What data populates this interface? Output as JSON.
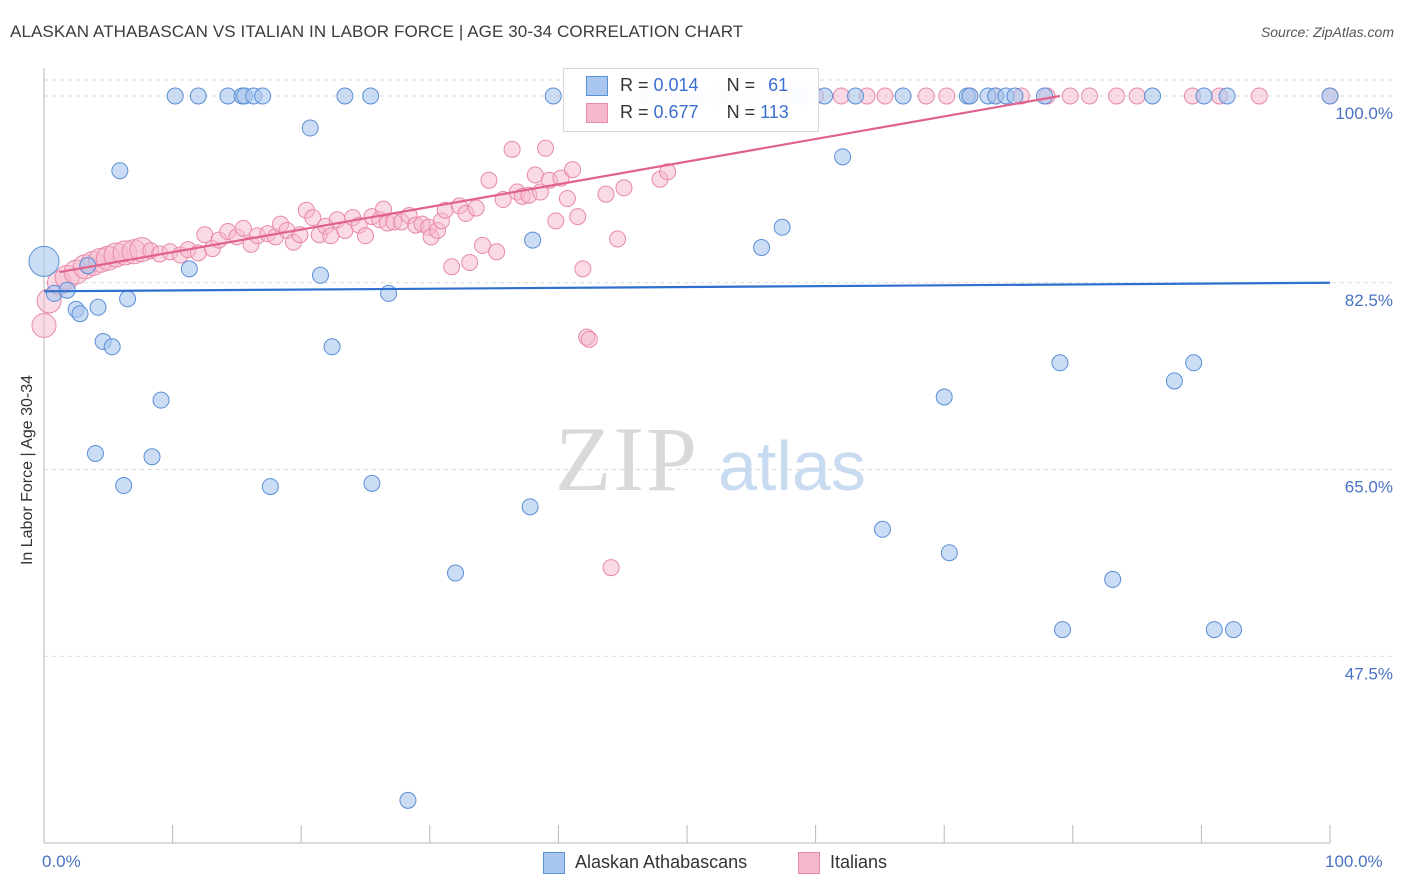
{
  "header": {
    "title": "ALASKAN ATHABASCAN VS ITALIAN IN LABOR FORCE | AGE 30-34 CORRELATION CHART",
    "source": "Source: ZipAtlas.com"
  },
  "watermark": {
    "zip": "ZIP",
    "atlas": "atlas"
  },
  "legend": {
    "rows": [
      {
        "r_label": "R = ",
        "r_value": "0.014",
        "n_label": "N = ",
        "n_value": "61"
      },
      {
        "r_label": "R = ",
        "r_value": "0.677",
        "n_label": "N = ",
        "n_value": "113"
      }
    ]
  },
  "bottom_legend": [
    "Alaskan Athabascans",
    "Italians"
  ],
  "colors": {
    "blue_fill": "#a9c7ee",
    "blue_stroke": "#5b8fd6",
    "blue_line": "#2f6fce",
    "pink_fill": "#f6b8cc",
    "pink_stroke": "#e889a8",
    "pink_line": "#e0628c",
    "grid": "#d9d9d9",
    "tick_text": "#4a72c4"
  },
  "chart_data": {
    "type": "scatter",
    "title": "ALASKAN ATHABASCAN VS ITALIAN IN LABOR FORCE | AGE 30-34 CORRELATION CHART",
    "xlabel": "",
    "ylabel": "In Labor Force | Age 30-34",
    "xlim": [
      0,
      100
    ],
    "ylim": [
      30,
      101.5
    ],
    "x_tick_labels": [
      "0.0%",
      "100.0%"
    ],
    "y_ticks": [
      47.5,
      65.0,
      82.5,
      100.0
    ],
    "y_tick_labels": [
      "47.5%",
      "65.0%",
      "82.5%",
      "100.0%"
    ],
    "grid": true,
    "legend_position": "top-center",
    "series": [
      {
        "name": "Alaskan Athabascans",
        "color": "#a9c7ee",
        "trend": {
          "x": [
            0,
            100
          ],
          "y": [
            81.7,
            82.5
          ]
        },
        "points": [
          [
            0.0,
            84.5,
            3
          ],
          [
            0.8,
            81.5,
            1
          ],
          [
            1.8,
            81.8,
            1
          ],
          [
            2.5,
            80.0,
            1
          ],
          [
            2.8,
            79.6,
            1
          ],
          [
            3.4,
            84.1,
            1
          ],
          [
            4.2,
            80.2,
            1
          ],
          [
            4.6,
            77.0,
            1
          ],
          [
            5.3,
            76.5,
            1
          ],
          [
            5.9,
            93.0,
            1
          ],
          [
            6.5,
            81.0,
            1
          ],
          [
            9.1,
            71.5,
            1
          ],
          [
            4.0,
            66.5,
            1
          ],
          [
            6.2,
            63.5,
            1
          ],
          [
            8.4,
            66.2,
            1
          ],
          [
            11.3,
            83.8,
            1
          ],
          [
            10.2,
            100.0,
            1
          ],
          [
            12.0,
            100.0,
            1
          ],
          [
            14.3,
            100.0,
            1
          ],
          [
            15.4,
            100.0,
            1
          ],
          [
            15.6,
            100.0,
            1
          ],
          [
            16.3,
            100.0,
            1
          ],
          [
            17.0,
            100.0,
            1
          ],
          [
            17.6,
            63.4,
            1
          ],
          [
            20.7,
            97.0,
            1
          ],
          [
            21.5,
            83.2,
            1
          ],
          [
            22.4,
            76.5,
            1
          ],
          [
            23.4,
            100.0,
            1
          ],
          [
            25.4,
            100.0,
            1
          ],
          [
            25.5,
            63.7,
            1
          ],
          [
            26.8,
            81.5,
            1
          ],
          [
            28.3,
            34.0,
            1
          ],
          [
            32.0,
            55.3,
            1
          ],
          [
            37.8,
            61.5,
            1
          ],
          [
            38.0,
            86.5,
            1
          ],
          [
            39.6,
            100.0,
            1
          ],
          [
            47.0,
            100.0,
            1
          ],
          [
            49.7,
            100.0,
            1
          ],
          [
            50.6,
            100.0,
            1
          ],
          [
            52.4,
            100.0,
            1
          ],
          [
            55.8,
            85.8,
            1
          ],
          [
            57.4,
            87.7,
            1
          ],
          [
            58.1,
            100.0,
            1
          ],
          [
            58.8,
            100.0,
            1
          ],
          [
            58.9,
            100.0,
            1
          ],
          [
            60.7,
            100.0,
            1
          ],
          [
            62.1,
            94.3,
            1
          ],
          [
            63.1,
            100.0,
            1
          ],
          [
            65.2,
            59.4,
            1
          ],
          [
            66.8,
            100.0,
            1
          ],
          [
            70.0,
            71.8,
            1
          ],
          [
            70.4,
            57.2,
            1
          ],
          [
            71.8,
            100.0,
            1
          ],
          [
            72.0,
            100.0,
            1
          ],
          [
            73.4,
            100.0,
            1
          ],
          [
            74.0,
            100.0,
            1
          ],
          [
            74.8,
            100.0,
            1
          ],
          [
            75.5,
            100.0,
            1
          ],
          [
            77.8,
            100.0,
            1
          ],
          [
            79.0,
            75.0,
            1
          ],
          [
            79.2,
            50.0,
            1
          ],
          [
            83.1,
            54.7,
            1
          ],
          [
            86.2,
            100.0,
            1
          ],
          [
            87.9,
            73.3,
            1
          ],
          [
            89.4,
            75.0,
            1
          ],
          [
            90.2,
            100.0,
            1
          ],
          [
            91.0,
            50.0,
            1
          ],
          [
            92.0,
            100.0,
            1
          ],
          [
            92.5,
            50.0,
            1
          ],
          [
            100.0,
            100.0,
            1
          ]
        ]
      },
      {
        "name": "Italians",
        "color": "#f6b8cc",
        "trend": {
          "x": [
            1.2,
            79.0
          ],
          "y": [
            83.5,
            100.0
          ]
        },
        "points": [
          [
            0.0,
            78.5,
            2
          ],
          [
            0.4,
            80.8,
            2
          ],
          [
            1.2,
            82.5,
            2
          ],
          [
            1.8,
            83.0,
            2
          ],
          [
            2.5,
            83.5,
            2
          ],
          [
            3.2,
            84.0,
            2
          ],
          [
            3.8,
            84.3,
            2
          ],
          [
            4.4,
            84.6,
            2
          ],
          [
            5.0,
            84.8,
            2
          ],
          [
            5.6,
            85.1,
            2
          ],
          [
            6.3,
            85.3,
            2
          ],
          [
            7.0,
            85.4,
            2
          ],
          [
            7.6,
            85.6,
            2
          ],
          [
            8.3,
            85.5,
            1
          ],
          [
            9.0,
            85.2,
            1
          ],
          [
            9.8,
            85.4,
            1
          ],
          [
            10.6,
            85.1,
            1
          ],
          [
            11.2,
            85.6,
            1
          ],
          [
            12.0,
            85.3,
            1
          ],
          [
            12.5,
            87.0,
            1
          ],
          [
            13.1,
            85.7,
            1
          ],
          [
            13.6,
            86.5,
            1
          ],
          [
            14.3,
            87.3,
            1
          ],
          [
            15.0,
            86.8,
            1
          ],
          [
            15.5,
            87.6,
            1
          ],
          [
            16.1,
            86.1,
            1
          ],
          [
            16.6,
            86.9,
            1
          ],
          [
            17.4,
            87.1,
            1
          ],
          [
            18.0,
            86.8,
            1
          ],
          [
            18.4,
            88.0,
            1
          ],
          [
            18.9,
            87.4,
            1
          ],
          [
            19.4,
            86.3,
            1
          ],
          [
            19.9,
            87.0,
            1
          ],
          [
            20.4,
            89.3,
            1
          ],
          [
            20.9,
            88.6,
            1
          ],
          [
            21.4,
            87.0,
            1
          ],
          [
            21.9,
            87.8,
            1
          ],
          [
            22.3,
            86.9,
            1
          ],
          [
            22.8,
            88.4,
            1
          ],
          [
            23.4,
            87.4,
            1
          ],
          [
            24.0,
            88.6,
            1
          ],
          [
            24.5,
            87.9,
            1
          ],
          [
            25.0,
            86.9,
            1
          ],
          [
            25.5,
            88.7,
            1
          ],
          [
            26.1,
            88.4,
            1
          ],
          [
            26.4,
            89.4,
            1
          ],
          [
            26.7,
            88.1,
            1
          ],
          [
            27.2,
            88.2,
            1
          ],
          [
            27.8,
            88.2,
            1
          ],
          [
            28.4,
            88.8,
            1
          ],
          [
            28.9,
            87.9,
            1
          ],
          [
            29.4,
            88.0,
            1
          ],
          [
            29.9,
            87.7,
            1
          ],
          [
            30.1,
            86.8,
            1
          ],
          [
            30.6,
            87.4,
            1
          ],
          [
            30.9,
            88.3,
            1
          ],
          [
            31.2,
            89.3,
            1
          ],
          [
            31.7,
            84.0,
            1
          ],
          [
            32.3,
            89.7,
            1
          ],
          [
            32.8,
            89.0,
            1
          ],
          [
            33.1,
            84.4,
            1
          ],
          [
            33.6,
            89.5,
            1
          ],
          [
            34.1,
            86.0,
            1
          ],
          [
            34.6,
            92.1,
            1
          ],
          [
            35.2,
            85.4,
            1
          ],
          [
            35.7,
            90.3,
            1
          ],
          [
            36.4,
            95.0,
            1
          ],
          [
            36.8,
            91.0,
            1
          ],
          [
            37.2,
            90.6,
            1
          ],
          [
            37.7,
            90.7,
            1
          ],
          [
            38.2,
            92.6,
            1
          ],
          [
            38.6,
            91.0,
            1
          ],
          [
            39.0,
            95.1,
            1
          ],
          [
            39.3,
            92.1,
            1
          ],
          [
            39.8,
            88.3,
            1
          ],
          [
            40.2,
            92.3,
            1
          ],
          [
            40.7,
            90.4,
            1
          ],
          [
            41.1,
            93.1,
            1
          ],
          [
            41.5,
            88.7,
            1
          ],
          [
            41.9,
            83.8,
            1
          ],
          [
            42.2,
            77.4,
            1
          ],
          [
            42.4,
            77.2,
            1
          ],
          [
            43.7,
            90.8,
            1
          ],
          [
            44.1,
            55.8,
            1
          ],
          [
            44.6,
            86.6,
            1
          ],
          [
            45.1,
            91.4,
            1
          ],
          [
            46.6,
            100.0,
            1
          ],
          [
            47.9,
            92.2,
            1
          ],
          [
            48.5,
            92.9,
            1
          ],
          [
            49.1,
            100.0,
            1
          ],
          [
            51.0,
            100.0,
            1
          ],
          [
            53.0,
            100.0,
            1
          ],
          [
            55.0,
            100.0,
            1
          ],
          [
            57.0,
            100.0,
            1
          ],
          [
            58.0,
            100.0,
            1
          ],
          [
            60.0,
            100.0,
            1
          ],
          [
            62.0,
            100.0,
            1
          ],
          [
            64.0,
            100.0,
            1
          ],
          [
            65.4,
            100.0,
            1
          ],
          [
            68.6,
            100.0,
            1
          ],
          [
            70.2,
            100.0,
            1
          ],
          [
            72.0,
            100.0,
            1
          ],
          [
            74.0,
            100.0,
            1
          ],
          [
            76.0,
            100.0,
            1
          ],
          [
            78.0,
            100.0,
            1
          ],
          [
            79.8,
            100.0,
            1
          ],
          [
            81.3,
            100.0,
            1
          ],
          [
            83.4,
            100.0,
            1
          ],
          [
            85.0,
            100.0,
            1
          ],
          [
            89.3,
            100.0,
            1
          ],
          [
            91.4,
            100.0,
            1
          ],
          [
            94.5,
            100.0,
            1
          ],
          [
            100.0,
            100.0,
            1
          ]
        ]
      }
    ]
  }
}
